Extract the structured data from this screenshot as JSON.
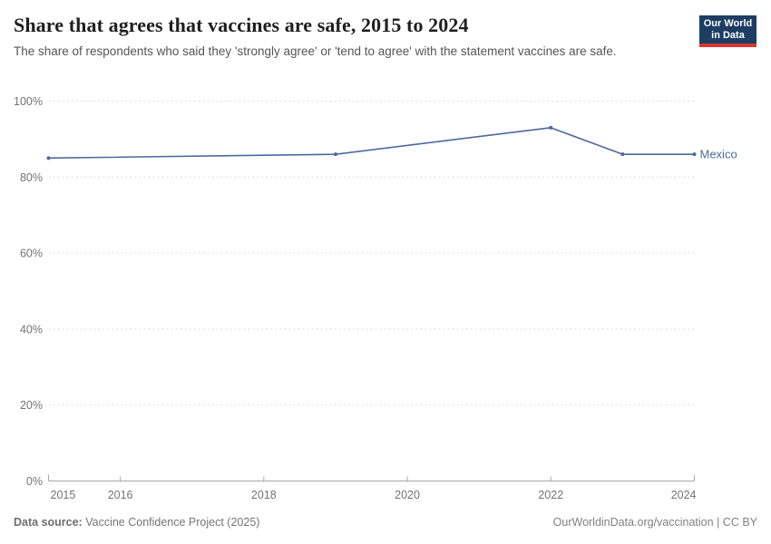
{
  "header": {
    "title": "Share that agrees that vaccines are safe, 2015 to 2024",
    "subtitle": "The share of respondents who said they 'strongly agree' or 'tend to agree' with the statement vaccines are safe."
  },
  "logo": {
    "line1": "Our World",
    "line2": "in Data",
    "bg_color": "#1d3d63",
    "accent_color": "#d8382e"
  },
  "chart_data": {
    "type": "line",
    "title": "Share that agrees that vaccines are safe, 2015 to 2024",
    "xlabel": "",
    "ylabel": "",
    "xlim": [
      2015,
      2024
    ],
    "ylim": [
      0,
      100
    ],
    "grid": "dashed horizontal gridlines",
    "legend_position": "end-of-line label",
    "x_ticks": [
      {
        "value": 2015,
        "label": "2015"
      },
      {
        "value": 2016,
        "label": "2016"
      },
      {
        "value": 2018,
        "label": "2018"
      },
      {
        "value": 2020,
        "label": "2020"
      },
      {
        "value": 2022,
        "label": "2022"
      },
      {
        "value": 2024,
        "label": "2024"
      }
    ],
    "y_ticks": [
      {
        "value": 0,
        "label": "0%"
      },
      {
        "value": 20,
        "label": "20%"
      },
      {
        "value": 40,
        "label": "40%"
      },
      {
        "value": 60,
        "label": "60%"
      },
      {
        "value": 80,
        "label": "80%"
      },
      {
        "value": 100,
        "label": "100%"
      }
    ],
    "series": [
      {
        "name": "Mexico",
        "color": "#4c6a9c",
        "points": [
          {
            "x": 2015,
            "y": 85
          },
          {
            "x": 2019,
            "y": 86
          },
          {
            "x": 2022,
            "y": 93
          },
          {
            "x": 2023,
            "y": 86
          },
          {
            "x": 2024,
            "y": 86
          }
        ]
      }
    ]
  },
  "footer": {
    "source_label": "Data source:",
    "source_text": " Vaccine Confidence Project (2025)",
    "url_text": "OurWorldinData.org/vaccination",
    "separator": " | ",
    "license": "CC BY"
  },
  "colors": {
    "gridline": "#dedede",
    "axis": "#a8a8a8",
    "tick_text": "#737373"
  }
}
